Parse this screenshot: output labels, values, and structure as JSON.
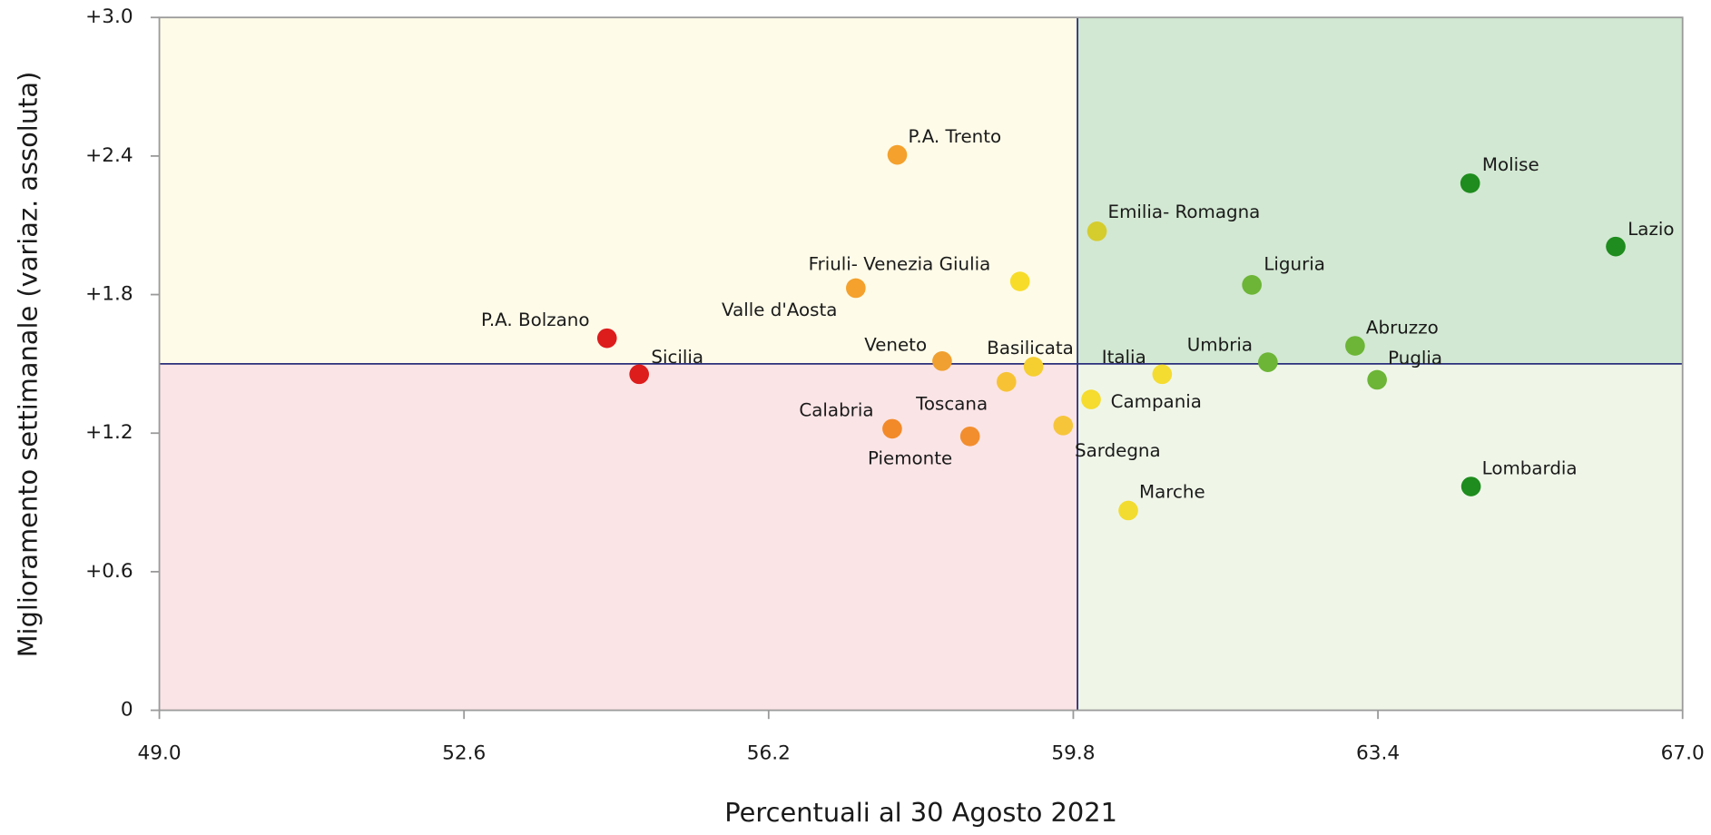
{
  "chart_data": {
    "type": "scatter",
    "x_label": "Percentuali al 30 Agosto 2021",
    "y_label": "Miglioramento settimanale (variaz. assoluta)",
    "xlim": [
      49,
      67
    ],
    "xticks": [
      {
        "value": 49,
        "label": "49.0"
      },
      {
        "value": 52.6,
        "label": "52.6"
      },
      {
        "value": 56.2,
        "label": "56.2"
      },
      {
        "value": 59.8,
        "label": "59.8"
      },
      {
        "value": 63.4,
        "label": "63.4"
      },
      {
        "value": 67,
        "label": "67.0"
      }
    ],
    "ylim": [
      0,
      3
    ],
    "yticks": [
      0,
      {
        "value": 0.6,
        "label": "+0.6"
      },
      {
        "value": 1.2,
        "label": "+1.2"
      },
      {
        "value": 1.8,
        "label": "+1.8"
      },
      {
        "value": 2.4,
        "label": "+2.4"
      },
      {
        "value": 3.0,
        "label": "+3.0"
      }
    ],
    "reference_x": 59.85,
    "reference_y": 1.5,
    "reference_color": "#2a2f7a",
    "quadrant_colors": {
      "top_left": "#fefbe8",
      "top_right": "#d2e8d2",
      "bottom_left": "#fbe4e6",
      "bottom_right": "#eff6e8"
    },
    "labels": [
      "P.A. Bolzano",
      "Sicilia",
      "P.A. Trento",
      "Valle d'Aosta",
      "Friuli- Venezia Giulia",
      "Veneto",
      "Basilicata",
      "Calabria",
      "Piemonte",
      "Toscana",
      "Sardegna",
      "Campania",
      "Italia",
      "Marche",
      "Emilia- Romagna",
      "Liguria",
      "Umbria",
      "Abruzzo",
      "Puglia",
      "Molise",
      "Lazio",
      "Lombardia"
    ],
    "x": [
      54.29,
      54.67,
      57.72,
      57.23,
      59.17,
      58.25,
      59.33,
      57.66,
      58.58,
      59.01,
      59.68,
      60.01,
      60.85,
      60.45,
      60.08,
      61.91,
      62.1,
      63.13,
      63.39,
      64.49,
      66.21,
      64.5
    ],
    "values": [
      1.611,
      1.455,
      2.405,
      1.828,
      1.857,
      1.512,
      1.488,
      1.219,
      1.186,
      1.422,
      1.233,
      1.346,
      1.455,
      0.865,
      2.074,
      1.842,
      1.507,
      1.578,
      1.431,
      2.282,
      2.008,
      0.969
    ],
    "colors": [
      "#dd1c1c",
      "#dd1c1c",
      "#f4a12d",
      "#f4a12d",
      "#f7dc2a",
      "#f0a030",
      "#f5cf30",
      "#f28a2a",
      "#f28e2e",
      "#f7c335",
      "#f6c53a",
      "#f5dc2e",
      "#f5dc30",
      "#f2dc30",
      "#d5cc2e",
      "#6cb536",
      "#6cb536",
      "#6cb536",
      "#6cb536",
      "#1e8c1e",
      "#1e8c1e",
      "#1e8c1e"
    ]
  }
}
